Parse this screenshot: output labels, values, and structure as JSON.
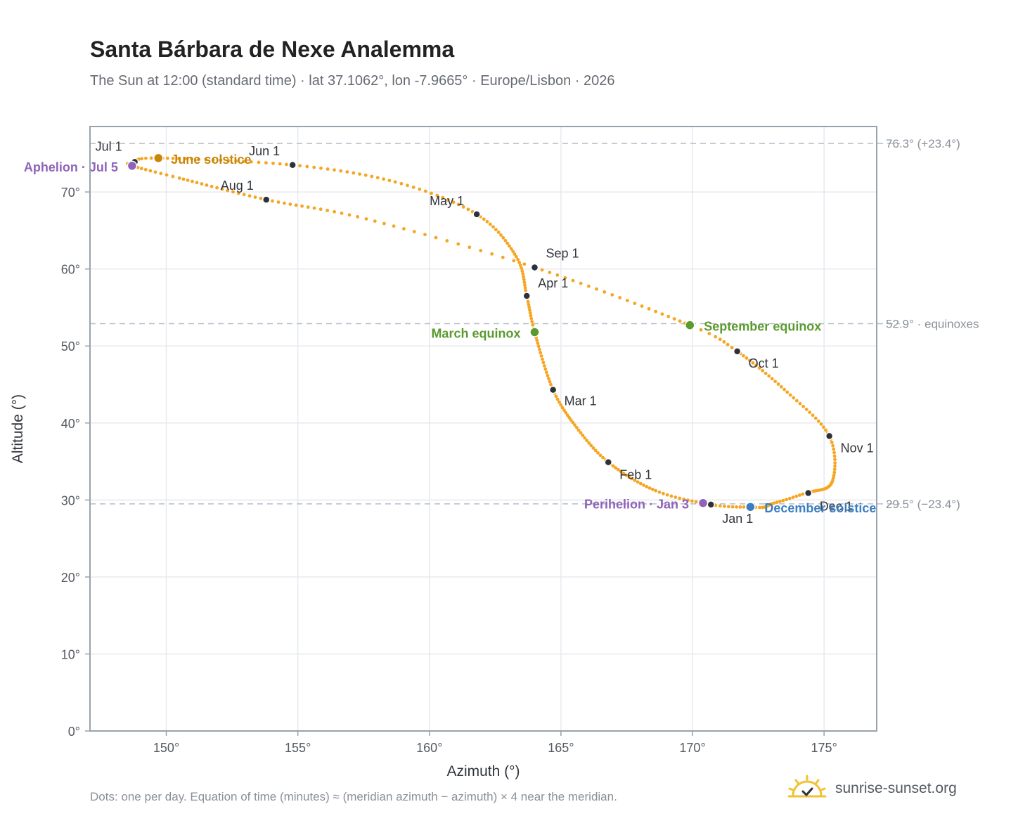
{
  "header": {
    "title": "Santa Bárbara de Nexe Analemma",
    "subtitle": "The Sun at 12:00 (standard time) · lat 37.1062°, lon -7.9665° · Europe/Lisbon · 2026"
  },
  "footer": {
    "note": "Dots: one per day. Equation of time (minutes) ≈ (meridian azimuth − azimuth) × 4 near the meridian.",
    "brand": "sunrise-sunset.org"
  },
  "colors": {
    "curve": "#f5a623",
    "month_marker": "#2d3138",
    "equinox": "#5a9a2e",
    "june_solstice": "#c8860b",
    "december_solstice": "#3a7ebf",
    "apsis": "#8e63b8",
    "reference_line": "#b6bec9",
    "grid": "#e6e9ee",
    "frame": "#98a2ae"
  },
  "chart_data": {
    "type": "scatter",
    "title": "Santa Bárbara de Nexe Analemma",
    "xlabel": "Azimuth (°)",
    "ylabel": "Altitude (°)",
    "xlim": [
      147.1,
      177.0
    ],
    "ylim": [
      0,
      78.5
    ],
    "grid": true,
    "x_ticks": [
      150,
      155,
      160,
      165,
      170,
      175
    ],
    "x_tick_labels": [
      "150°",
      "155°",
      "160°",
      "165°",
      "170°",
      "175°"
    ],
    "y_ticks": [
      0,
      10,
      20,
      30,
      40,
      50,
      60,
      70
    ],
    "y_tick_labels": [
      "0°",
      "10°",
      "20°",
      "30°",
      "40°",
      "50°",
      "60°",
      "70°"
    ],
    "reference_lines": [
      {
        "y": 76.3,
        "label": "76.3° (+23.4°)"
      },
      {
        "y": 52.9,
        "label": "52.9° · equinoxes"
      },
      {
        "y": 29.5,
        "label": "29.5° (−23.4°)"
      }
    ],
    "path": [
      {
        "day": 1,
        "az": 170.7,
        "alt": 29.4
      },
      {
        "day": 15,
        "az": 168.6,
        "alt": 31.2
      },
      {
        "day": 32,
        "az": 166.8,
        "alt": 34.9
      },
      {
        "day": 46,
        "az": 165.6,
        "alt": 39.4
      },
      {
        "day": 60,
        "az": 164.7,
        "alt": 44.3
      },
      {
        "day": 79,
        "az": 164.0,
        "alt": 51.8
      },
      {
        "day": 91,
        "az": 163.7,
        "alt": 56.5
      },
      {
        "day": 105,
        "az": 163.3,
        "alt": 61.6
      },
      {
        "day": 121,
        "az": 161.8,
        "alt": 67.1
      },
      {
        "day": 136,
        "az": 158.7,
        "alt": 71.3
      },
      {
        "day": 152,
        "az": 154.8,
        "alt": 73.5
      },
      {
        "day": 172,
        "az": 149.7,
        "alt": 74.4
      },
      {
        "day": 182,
        "az": 148.7,
        "alt": 73.8
      },
      {
        "day": 186,
        "az": 148.7,
        "alt": 73.4
      },
      {
        "day": 196,
        "az": 150.5,
        "alt": 71.8
      },
      {
        "day": 213,
        "az": 153.8,
        "alt": 69.0
      },
      {
        "day": 228,
        "az": 157.6,
        "alt": 66.5
      },
      {
        "day": 244,
        "az": 164.0,
        "alt": 60.2
      },
      {
        "day": 266,
        "az": 169.9,
        "alt": 52.7
      },
      {
        "day": 274,
        "az": 171.7,
        "alt": 49.3
      },
      {
        "day": 290,
        "az": 173.6,
        "alt": 44.0
      },
      {
        "day": 305,
        "az": 175.2,
        "alt": 38.3
      },
      {
        "day": 320,
        "az": 175.3,
        "alt": 32.3
      },
      {
        "day": 335,
        "az": 174.3,
        "alt": 30.9
      },
      {
        "day": 345,
        "az": 173.1,
        "alt": 29.6
      },
      {
        "day": 355,
        "az": 172.2,
        "alt": 29.1
      },
      {
        "day": 365,
        "az": 170.7,
        "alt": 29.4
      }
    ],
    "month_markers": [
      {
        "label": "Jan 1",
        "az": 170.7,
        "alt": 29.4
      },
      {
        "label": "Feb 1",
        "az": 166.8,
        "alt": 34.9
      },
      {
        "label": "Mar 1",
        "az": 164.7,
        "alt": 44.3
      },
      {
        "label": "Apr 1",
        "az": 163.7,
        "alt": 56.5
      },
      {
        "label": "May 1",
        "az": 161.8,
        "alt": 67.1
      },
      {
        "label": "Jun 1",
        "az": 154.8,
        "alt": 73.5
      },
      {
        "label": "Jul 1",
        "az": 148.8,
        "alt": 73.9
      },
      {
        "label": "Aug 1",
        "az": 153.8,
        "alt": 69.0
      },
      {
        "label": "Sep 1",
        "az": 164.0,
        "alt": 60.2
      },
      {
        "label": "Oct 1",
        "az": 171.7,
        "alt": 49.3
      },
      {
        "label": "Nov 1",
        "az": 175.2,
        "alt": 38.3
      },
      {
        "label": "Dec 1",
        "az": 174.4,
        "alt": 30.9
      }
    ],
    "events": [
      {
        "label": "March equinox",
        "az": 164.0,
        "alt": 51.8,
        "kind": "equinox"
      },
      {
        "label": "June solstice",
        "az": 149.7,
        "alt": 74.4,
        "kind": "june_solstice"
      },
      {
        "label": "September equinox",
        "az": 169.9,
        "alt": 52.7,
        "kind": "equinox"
      },
      {
        "label": "December solstice",
        "az": 172.2,
        "alt": 29.1,
        "kind": "december_solstice"
      },
      {
        "label": "Perihelion · Jan 3",
        "az": 170.4,
        "alt": 29.6,
        "kind": "apsis"
      },
      {
        "label": "Aphelion · Jul 5",
        "az": 148.7,
        "alt": 73.4,
        "kind": "apsis"
      }
    ]
  }
}
